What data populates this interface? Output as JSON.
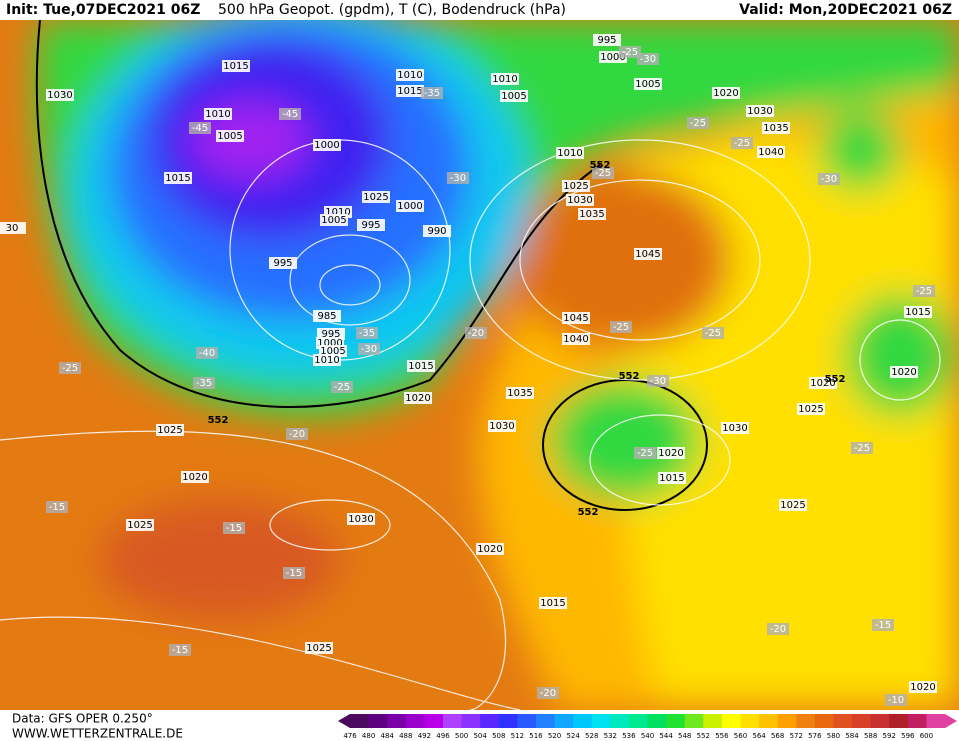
{
  "header": {
    "init": "Init: Tue,07DEC2021 06Z",
    "title": "500 hPa Geopot. (gpdm), T (C), Bodendruck (hPa)",
    "valid": "Valid: Mon,20DEC2021 06Z"
  },
  "footer": {
    "data": "Data: GFS OPER 0.250°",
    "site": "WWW.WETTERZENTRALE.DE"
  },
  "pressure_labels": [
    "1030",
    "1015",
    "1010",
    "1005",
    "1015",
    "1000",
    "1010",
    "1015",
    "1010",
    "1005",
    "995",
    "1000",
    "1005",
    "1020",
    "1030",
    "1035",
    "1040",
    "1010",
    "1025",
    "1030",
    "1035",
    "1025",
    "1000",
    "1010",
    "1005",
    "995",
    "990",
    "995",
    "985",
    "995",
    "1000",
    "1005",
    "1010",
    "1015",
    "1020",
    "1045",
    "1045",
    "1040",
    "1035",
    "1030",
    "1030",
    "1025",
    "1020",
    "1015",
    "1020",
    "1020",
    "1015",
    "1025",
    "1025",
    "1020",
    "1025",
    "1030",
    "1020",
    "1015",
    "1025",
    "1020",
    "30"
  ],
  "temperature_labels": [
    "-45",
    "-45",
    "-35",
    "-30",
    "-25",
    "-30",
    "-25",
    "-25",
    "-25",
    "-30",
    "-25",
    "-25",
    "-25",
    "-20",
    "-35",
    "-30",
    "-40",
    "-35",
    "-25",
    "-25",
    "-30",
    "-20",
    "-25",
    "-25",
    "-15",
    "-15",
    "-15",
    "-15",
    "-20",
    "-15",
    "-20",
    "-10"
  ],
  "height_labels": [
    "552",
    "552",
    "552",
    "552",
    "552"
  ],
  "colorbar": {
    "ticks": [
      476,
      480,
      484,
      488,
      492,
      496,
      500,
      504,
      508,
      512,
      516,
      520,
      524,
      528,
      532,
      536,
      540,
      544,
      548,
      552,
      556,
      560,
      564,
      568,
      572,
      576,
      580,
      584,
      588,
      592,
      596,
      600
    ],
    "colors": [
      "#4a0a5e",
      "#5c0080",
      "#7a00a8",
      "#9a00cc",
      "#b800e8",
      "#b040ff",
      "#8a30ff",
      "#5a28ff",
      "#3030ff",
      "#2858ff",
      "#2080ff",
      "#10a8ff",
      "#00c8ff",
      "#00e0f0",
      "#00e8c0",
      "#00e890",
      "#00e060",
      "#20e030",
      "#70e820",
      "#c8f000",
      "#ffff00",
      "#ffe000",
      "#ffc000",
      "#ffa000",
      "#f08010",
      "#e86810",
      "#e05020",
      "#d84028",
      "#c83030",
      "#b02028",
      "#c02060",
      "#e040a0"
    ]
  }
}
